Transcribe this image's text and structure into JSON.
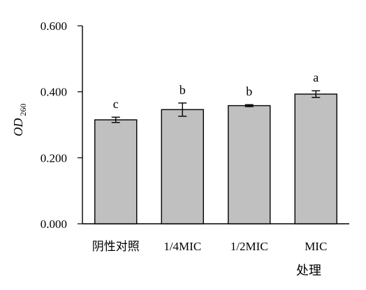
{
  "chart_data": {
    "type": "bar",
    "title": "",
    "categories": [
      "阴性对照",
      "1/4MIC",
      "1/2MIC",
      "MIC"
    ],
    "values": [
      0.315,
      0.346,
      0.358,
      0.393
    ],
    "error": [
      0.008,
      0.02,
      0.003,
      0.01
    ],
    "significance": [
      "c",
      "b",
      "b",
      "a"
    ],
    "xlabel": "处理",
    "ylabel": {
      "main": "OD",
      "subscript": "260"
    },
    "ylim": [
      0,
      0.6
    ],
    "yticks": [
      0.0,
      0.2,
      0.4,
      0.6
    ],
    "ytick_labels": [
      "0.000",
      "0.200",
      "0.400",
      "0.600"
    ],
    "grid": false,
    "legend": "none",
    "colors": {
      "bar_fill": "#c0c0c0",
      "bar_stroke": "#000000",
      "axis": "#000000",
      "background": "#ffffff"
    }
  }
}
